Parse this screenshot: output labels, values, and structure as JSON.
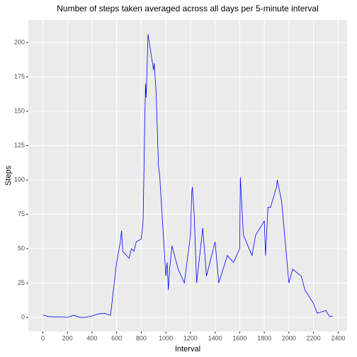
{
  "chart_data": {
    "type": "line",
    "title": "Number of steps taken averaged across all days per 5-minute interval",
    "x_label": "Interval",
    "y_label": "Steps",
    "x": [
      0,
      50,
      100,
      150,
      200,
      250,
      300,
      350,
      400,
      450,
      500,
      530,
      550,
      600,
      610,
      620,
      630,
      640,
      650,
      700,
      720,
      740,
      760,
      800,
      815,
      830,
      835,
      840,
      850,
      855,
      900,
      905,
      920,
      940,
      950,
      1000,
      1010,
      1020,
      1030,
      1050,
      1100,
      1150,
      1200,
      1210,
      1215,
      1230,
      1250,
      1300,
      1330,
      1400,
      1430,
      1500,
      1550,
      1600,
      1605,
      1630,
      1700,
      1730,
      1800,
      1810,
      1830,
      1850,
      1900,
      1905,
      1940,
      2000,
      2030,
      2100,
      2130,
      2200,
      2230,
      2300,
      2330,
      2355
    ],
    "series": [
      {
        "name": "Steps",
        "color": "#0000ff",
        "values": [
          1.7,
          0.5,
          0.3,
          0.2,
          0,
          1.5,
          0,
          0,
          1,
          2.5,
          3,
          2,
          1.5,
          40,
          45,
          50,
          55,
          63,
          48,
          43,
          50,
          48,
          55,
          57,
          70,
          150,
          170,
          160,
          190,
          206,
          180,
          185,
          165,
          110,
          103,
          30,
          40,
          20,
          35,
          52,
          35,
          25,
          60,
          90,
          95,
          75,
          25,
          65,
          30,
          55,
          25,
          45,
          40,
          50,
          102,
          60,
          45,
          60,
          70,
          45,
          80,
          80,
          95,
          100,
          85,
          25,
          35,
          30,
          20,
          10,
          3,
          5,
          0.5,
          1
        ]
      }
    ],
    "xlim": [
      -117.75,
      2472.75
    ],
    "ylim": [
      -10.3,
      216.5
    ],
    "xticks": [
      0,
      200,
      400,
      600,
      800,
      1000,
      1200,
      1400,
      1600,
      1800,
      2000,
      2200,
      2400
    ],
    "yticks": [
      0,
      25,
      50,
      75,
      100,
      125,
      150,
      175,
      200
    ],
    "grid": true
  }
}
